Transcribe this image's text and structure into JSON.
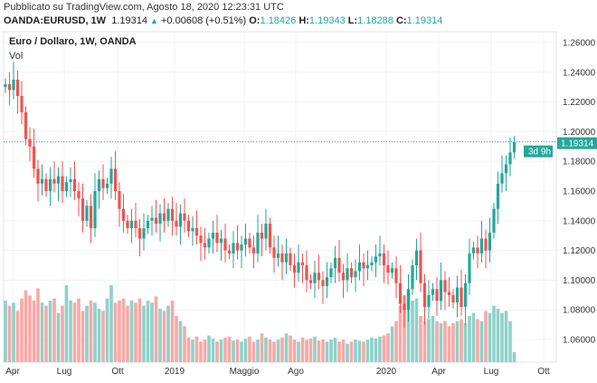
{
  "header": {
    "published": "Pubblicato su TradingView.com, Agosto 18, 2020 12:23:31 UTC",
    "symbol": "OANDA:EURUSD, 1W",
    "last": "1.19314",
    "change": "+0.00608 (+0.51%)",
    "o_label": "O:",
    "o": "1.18426",
    "h_label": "H:",
    "h": "1.19343",
    "l_label": "L:",
    "l": "1.18288",
    "c_label": "C:",
    "c": "1.19314"
  },
  "legend": {
    "title": "Euro / Dollaro, 1W, OANDA",
    "volume": "Vol"
  },
  "price_label": "1.19314",
  "countdown": "3d 9h",
  "colors": {
    "up": "#26a69a",
    "down": "#ef5350",
    "up_vol": "#8fd1c9",
    "down_vol": "#f7a9a7"
  },
  "chart_data": {
    "type": "candlestick",
    "title": "Euro / Dollaro, 1W, OANDA",
    "ylim": [
      1.05,
      1.267
    ],
    "yticks": [
      "1.26000",
      "1.24000",
      "1.22000",
      "1.20000",
      "1.18000",
      "1.16000",
      "1.14000",
      "1.12000",
      "1.10000",
      "1.08000",
      "1.06000"
    ],
    "xticks": [
      "Apr",
      "Lug",
      "Ott",
      "2019",
      "Maggio",
      "Ago",
      "2020",
      "Apr",
      "Lug",
      "Ott"
    ],
    "first_open": 1.23,
    "closes": [
      1.232,
      1.228,
      1.235,
      1.224,
      1.213,
      1.195,
      1.19,
      1.175,
      1.165,
      1.168,
      1.16,
      1.168,
      1.165,
      1.17,
      1.16,
      1.166,
      1.168,
      1.16,
      1.155,
      1.14,
      1.15,
      1.135,
      1.16,
      1.168,
      1.162,
      1.165,
      1.175,
      1.16,
      1.148,
      1.14,
      1.135,
      1.14,
      1.135,
      1.128,
      1.135,
      1.14,
      1.142,
      1.138,
      1.145,
      1.14,
      1.148,
      1.14,
      1.136,
      1.145,
      1.14,
      1.133,
      1.135,
      1.13,
      1.125,
      1.122,
      1.128,
      1.132,
      1.125,
      1.128,
      1.12,
      1.118,
      1.125,
      1.12,
      1.124,
      1.128,
      1.122,
      1.118,
      1.132,
      1.128,
      1.138,
      1.122,
      1.115,
      1.118,
      1.112,
      1.118,
      1.11,
      1.105,
      1.112,
      1.11,
      1.1,
      1.098,
      1.105,
      1.1,
      1.096,
      1.102,
      1.108,
      1.115,
      1.105,
      1.1,
      1.108,
      1.102,
      1.106,
      1.112,
      1.108,
      1.11,
      1.112,
      1.116,
      1.118,
      1.11,
      1.105,
      1.108,
      1.098,
      1.084,
      1.08,
      1.094,
      1.11,
      1.12,
      1.098,
      1.082,
      1.09,
      1.094,
      1.086,
      1.1,
      1.092,
      1.09,
      1.085,
      1.095,
      1.082,
      1.098,
      1.118,
      1.122,
      1.118,
      1.128,
      1.12,
      1.132,
      1.148,
      1.165,
      1.172,
      1.178,
      1.186,
      1.193
    ],
    "volumes": [
      60,
      55,
      58,
      50,
      62,
      70,
      65,
      60,
      72,
      58,
      55,
      60,
      62,
      48,
      55,
      75,
      60,
      58,
      62,
      50,
      55,
      60,
      58,
      52,
      50,
      62,
      75,
      58,
      60,
      62,
      55,
      60,
      58,
      62,
      55,
      60,
      58,
      64,
      52,
      50,
      55,
      60,
      45,
      40,
      35,
      24,
      22,
      25,
      20,
      22,
      26,
      23,
      20,
      22,
      24,
      25,
      21,
      22,
      20,
      23,
      25,
      20,
      22,
      28,
      24,
      22,
      20,
      22,
      24,
      28,
      26,
      22,
      20,
      24,
      22,
      23,
      25,
      21,
      22,
      20,
      22,
      24,
      20,
      22,
      18,
      20,
      22,
      21,
      20,
      22,
      24,
      23,
      25,
      26,
      28,
      35,
      40,
      55,
      65,
      70,
      60,
      62,
      45,
      40,
      42,
      45,
      40,
      38,
      40,
      35,
      38,
      40,
      42,
      38,
      45,
      48,
      42,
      40,
      50,
      48,
      55,
      52,
      48,
      50,
      40,
      10
    ]
  }
}
